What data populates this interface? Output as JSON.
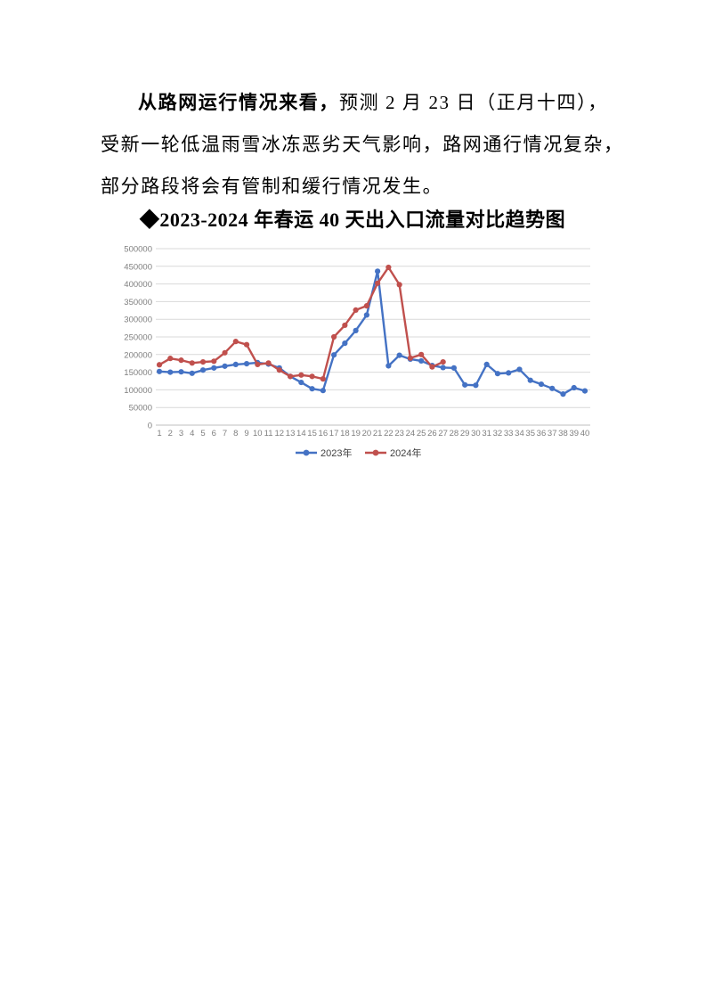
{
  "paragraph": {
    "lead": "从路网运行情况来看，",
    "line1_rest": "预测 2 月 23 日（正月十四），",
    "line2": "受新一轮低温雨雪冰冻恶劣天气影响，路网通行情况复杂，",
    "line3": "部分路段将会有管制和缓行情况发生。"
  },
  "chart_heading": "◆2023-2024 年春运 40 天出入口流量对比趋势图",
  "chart_data": {
    "type": "line",
    "title": "2023-2024 年春运 40 天出入口流量对比趋势图",
    "xlabel": "",
    "ylabel": "",
    "x": [
      1,
      2,
      3,
      4,
      5,
      6,
      7,
      8,
      9,
      10,
      11,
      12,
      13,
      14,
      15,
      16,
      17,
      18,
      19,
      20,
      21,
      22,
      23,
      24,
      25,
      26,
      27,
      28,
      29,
      30,
      31,
      32,
      33,
      34,
      35,
      36,
      37,
      38,
      39,
      40
    ],
    "series": [
      {
        "name": "2023年",
        "color": "#4472C4",
        "values": [
          152000,
          150000,
          151000,
          147000,
          156000,
          162000,
          167000,
          172000,
          174000,
          177000,
          173000,
          162000,
          138000,
          121000,
          103000,
          98000,
          199000,
          232000,
          268000,
          312000,
          436000,
          168000,
          198000,
          187000,
          182000,
          169000,
          163000,
          162000,
          114000,
          113000,
          172000,
          146000,
          148000,
          158000,
          127000,
          116000,
          104000,
          88000,
          106000,
          97000
        ]
      },
      {
        "name": "2024年",
        "color": "#C0504D",
        "values": [
          171000,
          189000,
          184000,
          176000,
          179000,
          181000,
          205000,
          237000,
          228000,
          172000,
          176000,
          156000,
          138000,
          142000,
          138000,
          131000,
          250000,
          283000,
          326000,
          338000,
          402000,
          447000,
          398000,
          190000,
          200000,
          165000,
          179000
        ]
      }
    ],
    "ylim": [
      0,
      500000
    ],
    "ytick_step": 50000,
    "grid": true,
    "legend_position": "bottom",
    "grid_color": "#D9D9D9",
    "axis_color": "#BFBFBF",
    "tick_color": "#7F7F7F"
  }
}
